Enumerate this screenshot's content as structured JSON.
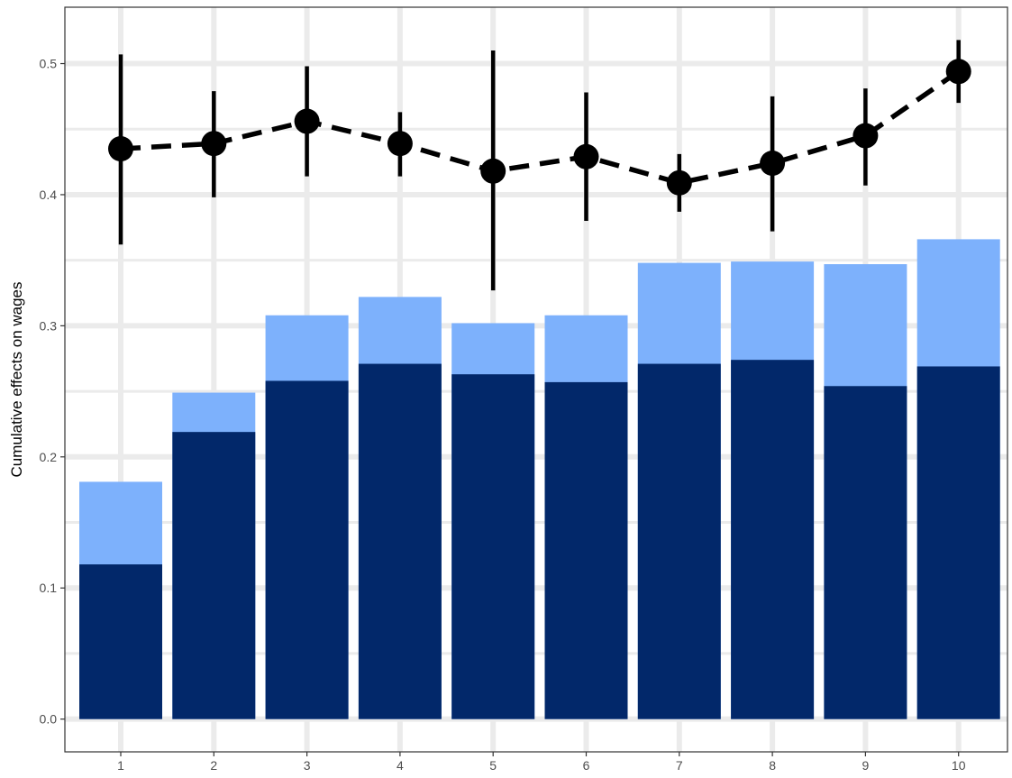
{
  "chart_data": {
    "type": "bar",
    "title": "",
    "xlabel": "",
    "ylabel": "Cumulative effects on wages",
    "categories": [
      "1",
      "2",
      "3",
      "4",
      "5",
      "6",
      "7",
      "8",
      "9",
      "10"
    ],
    "ylim": [
      -0.025,
      0.543
    ],
    "y_ticks": [
      0.0,
      0.1,
      0.2,
      0.3,
      0.4,
      0.5
    ],
    "y_tick_labels": [
      "0.0",
      "0.1",
      "0.2",
      "0.3",
      "0.4",
      "0.5"
    ],
    "grid": true,
    "legend": "none",
    "series": [
      {
        "type": "bar",
        "color": "#02286a",
        "values": [
          0.118,
          0.219,
          0.258,
          0.271,
          0.263,
          0.257,
          0.271,
          0.274,
          0.254,
          0.269
        ]
      },
      {
        "type": "bar",
        "color": "#7db1fc",
        "values": [
          0.181,
          0.249,
          0.308,
          0.322,
          0.302,
          0.308,
          0.348,
          0.349,
          0.347,
          0.366
        ]
      },
      {
        "type": "line",
        "style": "dashed",
        "color": "#000000",
        "values": [
          0.435,
          0.439,
          0.456,
          0.439,
          0.418,
          0.429,
          0.409,
          0.424,
          0.445,
          0.494
        ],
        "lower": [
          0.362,
          0.398,
          0.414,
          0.414,
          0.327,
          0.38,
          0.387,
          0.372,
          0.407,
          0.47
        ],
        "upper": [
          0.507,
          0.479,
          0.498,
          0.463,
          0.51,
          0.478,
          0.431,
          0.475,
          0.481,
          0.518
        ]
      }
    ]
  }
}
